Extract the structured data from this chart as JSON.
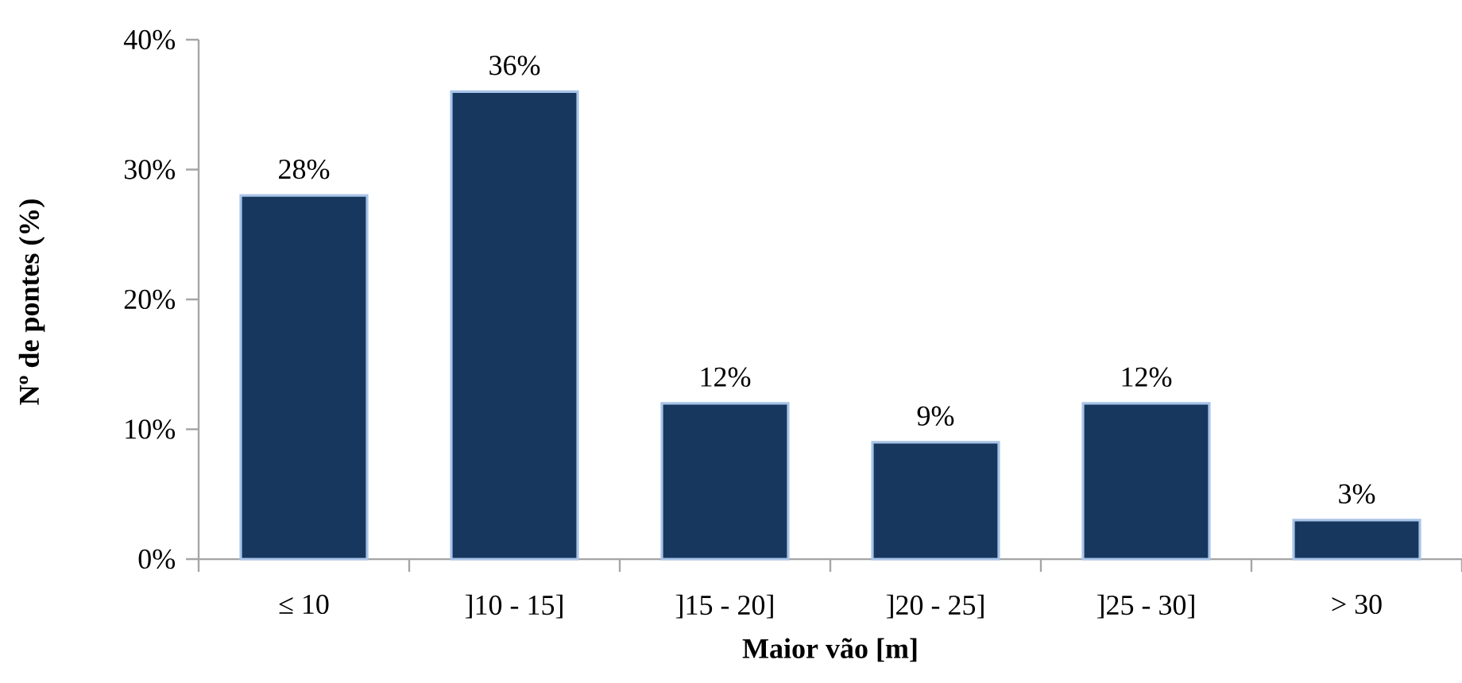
{
  "chart_data": {
    "type": "bar",
    "xlabel": "Maior vão [m]",
    "ylabel": "Nº de pontes (%)",
    "categories": [
      "≤ 10",
      "]10 - 15]",
      "]15 - 20]",
      "]20 - 25]",
      "]25 - 30]",
      "> 30"
    ],
    "values": [
      28,
      36,
      12,
      9,
      12,
      3
    ],
    "value_labels": [
      "28%",
      "36%",
      "12%",
      "9%",
      "12%",
      "3%"
    ],
    "color": "#17375e",
    "ylim": [
      0,
      40
    ],
    "yticks": [
      {
        "value": 0,
        "label": "0%"
      },
      {
        "value": 10,
        "label": "10%"
      },
      {
        "value": 20,
        "label": "20%"
      },
      {
        "value": 30,
        "label": "30%"
      },
      {
        "value": 40,
        "label": "40%"
      }
    ]
  }
}
